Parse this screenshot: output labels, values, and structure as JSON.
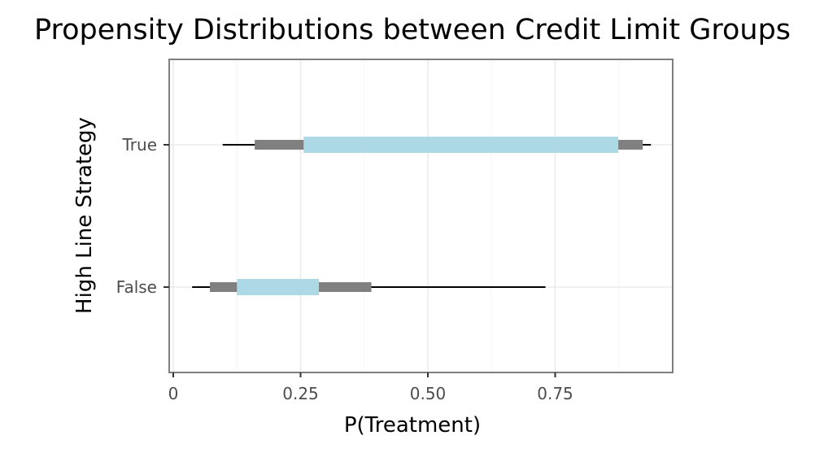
{
  "chart_data": {
    "type": "interval",
    "title": "Propensity Distributions between Credit Limit Groups",
    "xlabel": "P(Treatment)",
    "ylabel": "High Line Strategy",
    "xlim": [
      0,
      1
    ],
    "xticks": [
      0,
      0.25,
      0.5,
      0.75
    ],
    "xtick_labels": [
      "0",
      "0.25",
      "0.50",
      "0.75"
    ],
    "categories": [
      "False",
      "True"
    ],
    "grid": true,
    "series": [
      {
        "category": "True",
        "min": 0.097,
        "p10": 0.16,
        "p25": 0.256,
        "p75": 0.874,
        "p90": 0.922,
        "max": 0.938
      },
      {
        "category": "False",
        "min": 0.037,
        "p10": 0.072,
        "p25": 0.125,
        "p75": 0.286,
        "p90": 0.389,
        "max": 0.731
      }
    ],
    "colors": {
      "inner": "#add8e6",
      "outer": "#808080",
      "whisker": "#000000",
      "panel_border": "#7f7f7f",
      "grid_major": "#ebebeb",
      "grid_minor": "#f5f5f5",
      "tick_text": "#4d4d4d"
    }
  }
}
